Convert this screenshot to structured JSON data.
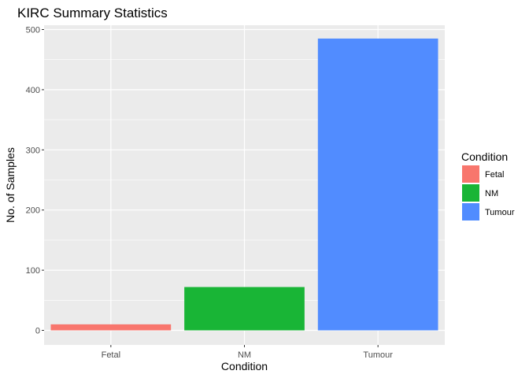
{
  "chart_data": {
    "type": "bar",
    "title": "KIRC Summary Statistics",
    "xlabel": "Condition",
    "ylabel": "No. of Samples",
    "categories": [
      "Fetal",
      "NM",
      "Tumour"
    ],
    "values": [
      10,
      72,
      485
    ],
    "colors": [
      "#F8766D",
      "#19B536",
      "#518CFF"
    ],
    "ylim": [
      0,
      510
    ],
    "yticks": [
      0,
      100,
      200,
      300,
      400,
      500
    ],
    "grid": true,
    "legend": {
      "title": "Condition",
      "placement": "right",
      "entries": [
        "Fetal",
        "NM",
        "Tumour"
      ]
    }
  }
}
